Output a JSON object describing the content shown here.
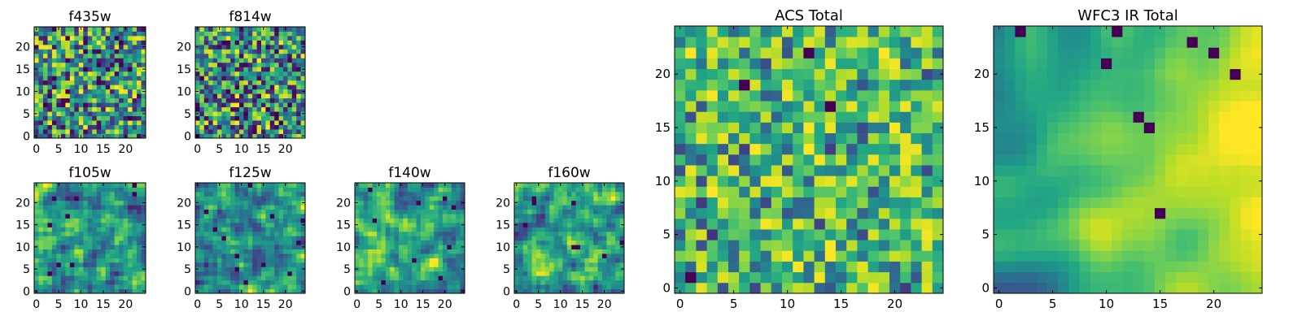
{
  "chart_data": [
    {
      "type": "heatmap",
      "title": "f435w",
      "xticks": [
        "0",
        "5",
        "10",
        "15",
        "20"
      ],
      "yticks": [
        "0",
        "5",
        "10",
        "15",
        "20"
      ],
      "xlim": [
        -0.5,
        24.5
      ],
      "ylim": [
        -0.5,
        24.5
      ],
      "grid_size": 25,
      "colormap": "viridis",
      "seed": 11,
      "pattern": "noise"
    },
    {
      "type": "heatmap",
      "title": "f814w",
      "xticks": [
        "0",
        "5",
        "10",
        "15",
        "20"
      ],
      "yticks": [
        "0",
        "5",
        "10",
        "15",
        "20"
      ],
      "xlim": [
        -0.5,
        24.5
      ],
      "ylim": [
        -0.5,
        24.5
      ],
      "grid_size": 25,
      "colormap": "viridis",
      "seed": 23,
      "pattern": "noise"
    },
    {
      "type": "heatmap",
      "title": "f105w",
      "xticks": [
        "0",
        "5",
        "10",
        "15",
        "20"
      ],
      "yticks": [
        "0",
        "5",
        "10",
        "15",
        "20"
      ],
      "xlim": [
        -0.5,
        24.5
      ],
      "ylim": [
        -0.5,
        24.5
      ],
      "grid_size": 25,
      "colormap": "viridis",
      "seed": 37,
      "pattern": "smooth"
    },
    {
      "type": "heatmap",
      "title": "f125w",
      "xticks": [
        "0",
        "5",
        "10",
        "15",
        "20"
      ],
      "yticks": [
        "0",
        "5",
        "10",
        "15",
        "20"
      ],
      "xlim": [
        -0.5,
        24.5
      ],
      "ylim": [
        -0.5,
        24.5
      ],
      "grid_size": 25,
      "colormap": "viridis",
      "seed": 41,
      "pattern": "smooth"
    },
    {
      "type": "heatmap",
      "title": "f140w",
      "xticks": [
        "0",
        "5",
        "10",
        "15",
        "20"
      ],
      "yticks": [
        "0",
        "5",
        "10",
        "15",
        "20"
      ],
      "xlim": [
        -0.5,
        24.5
      ],
      "ylim": [
        -0.5,
        24.5
      ],
      "grid_size": 25,
      "colormap": "viridis",
      "seed": 53,
      "pattern": "smooth"
    },
    {
      "type": "heatmap",
      "title": "f160w",
      "xticks": [
        "0",
        "5",
        "10",
        "15",
        "20"
      ],
      "yticks": [
        "0",
        "5",
        "10",
        "15",
        "20"
      ],
      "xlim": [
        -0.5,
        24.5
      ],
      "ylim": [
        -0.5,
        24.5
      ],
      "grid_size": 25,
      "colormap": "viridis",
      "seed": 67,
      "pattern": "smooth"
    },
    {
      "type": "heatmap",
      "title": "ACS Total",
      "xticks": [
        "0",
        "5",
        "10",
        "15",
        "20"
      ],
      "yticks": [
        "0",
        "5",
        "10",
        "15",
        "20"
      ],
      "xlim": [
        -0.5,
        24.5
      ],
      "ylim": [
        -0.5,
        24.5
      ],
      "grid_size": 25,
      "colormap": "viridis",
      "seed": 79,
      "pattern": "noise-bright"
    },
    {
      "type": "heatmap",
      "title": "WFC3 IR Total",
      "xticks": [
        "0",
        "5",
        "10",
        "15",
        "20"
      ],
      "yticks": [
        "0",
        "5",
        "10",
        "15",
        "20"
      ],
      "xlim": [
        -0.5,
        24.5
      ],
      "ylim": [
        -0.5,
        24.5
      ],
      "grid_size": 25,
      "colormap": "viridis",
      "seed": 97,
      "pattern": "gradient"
    }
  ]
}
